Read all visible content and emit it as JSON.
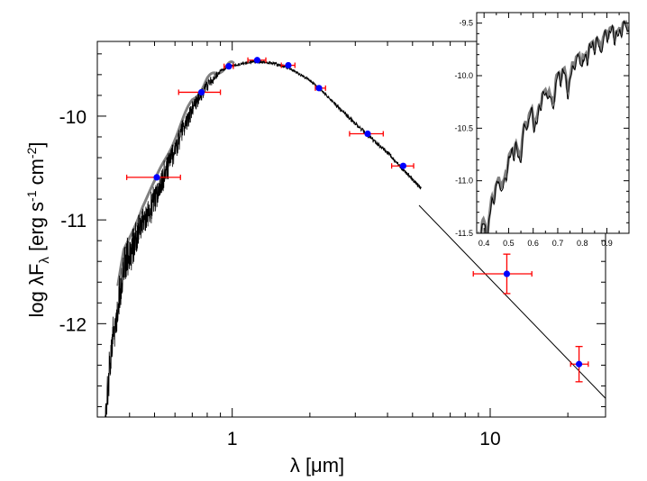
{
  "chart_data": [
    {
      "type": "scatter",
      "title": "",
      "xlabel": "λ [μm]",
      "ylabel": "log λFλ [erg s-1 cm-2]",
      "xscale": "log",
      "xlim": [
        0.3,
        28
      ],
      "ylim": [
        -12.9,
        -9.28
      ],
      "x_ticks": [
        1,
        10
      ],
      "x_tick_labels": [
        "1",
        "10"
      ],
      "y_ticks": [
        -10,
        -11,
        -12
      ],
      "y_tick_labels": [
        "-10",
        "-11",
        "-12"
      ],
      "grid": false,
      "series": [
        {
          "kind": "photometry",
          "color": "#0000ff",
          "error_color": "#ff0000",
          "points": [
            {
              "x": 0.51,
              "y": -10.59,
              "xerr": [
                0.39,
                0.63
              ],
              "yerr": 0.0
            },
            {
              "x": 0.76,
              "y": -9.77,
              "xerr": [
                0.62,
                0.9
              ],
              "yerr": 0.0
            },
            {
              "x": 0.97,
              "y": -9.52,
              "xerr": [
                0.93,
                1.01
              ],
              "yerr": 0.0
            },
            {
              "x": 1.25,
              "y": -9.46,
              "xerr": [
                1.15,
                1.35
              ],
              "yerr": 0.0
            },
            {
              "x": 1.65,
              "y": -9.51,
              "xerr": [
                1.55,
                1.75
              ],
              "yerr": 0.0
            },
            {
              "x": 2.17,
              "y": -9.73,
              "xerr": [
                2.1,
                2.3
              ],
              "yerr": 0.0
            },
            {
              "x": 3.35,
              "y": -10.17,
              "xerr": [
                2.85,
                3.85
              ],
              "yerr": 0.0
            },
            {
              "x": 4.6,
              "y": -10.48,
              "xerr": [
                4.15,
                5.05
              ],
              "yerr": 0.0
            },
            {
              "x": 11.6,
              "y": -11.52,
              "xerr": [
                8.6,
                14.5
              ],
              "yerr": 0.19
            },
            {
              "x": 22.1,
              "y": -12.39,
              "xerr": [
                20.5,
                24.0
              ],
              "yerr": 0.17
            }
          ]
        },
        {
          "kind": "model-spectrum",
          "color": "#000000",
          "grey_color": "#808080",
          "x_range": [
            0.32,
            5.4
          ],
          "peak": {
            "x": 1.2,
            "y": -9.45
          }
        },
        {
          "kind": "rayleigh-jeans-tail",
          "color": "#000000",
          "x": [
            5.3,
            28.0
          ],
          "y": [
            -10.86,
            -12.72
          ]
        }
      ]
    },
    {
      "type": "line",
      "title": "",
      "inset": true,
      "xlim": [
        0.37,
        0.99
      ],
      "ylim": [
        -11.5,
        -9.4
      ],
      "x_ticks": [
        0.4,
        0.5,
        0.6,
        0.7,
        0.8,
        0.9
      ],
      "x_tick_labels": [
        "0.4",
        "0.5",
        "0.6",
        "0.7",
        "0.8",
        "0.9"
      ],
      "y_ticks": [
        -9.5,
        -10.0,
        -10.5,
        -11.0,
        -11.5
      ],
      "y_tick_labels": [
        "-9.5",
        "-10.0",
        "-10.5",
        "-11.0",
        "-11.5"
      ],
      "grid": false,
      "series": [
        {
          "kind": "spectrum-black",
          "color": "#000000"
        },
        {
          "kind": "spectrum-grey",
          "color": "#808080"
        }
      ]
    }
  ]
}
